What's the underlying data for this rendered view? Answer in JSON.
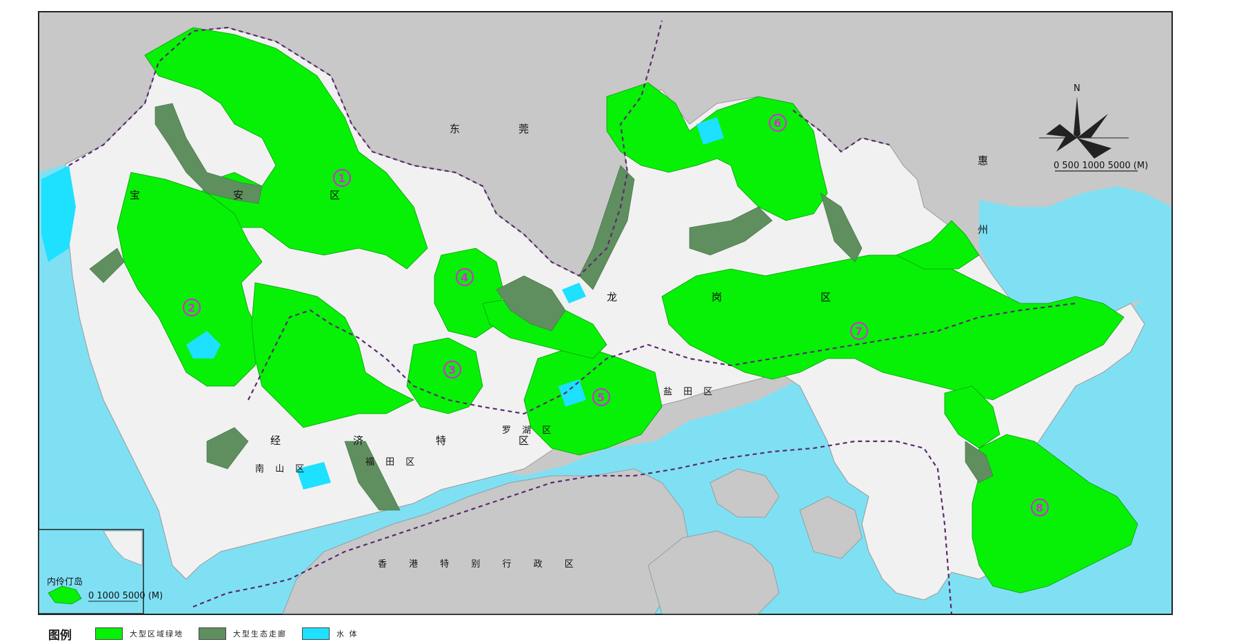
{
  "map": {
    "colors": {
      "sea": "#7fe0f4",
      "land_outside": "#c8c8c8",
      "urban": "#f1f1f1",
      "green_belt": "#06f106",
      "eco_corridor": "#5f8f5f",
      "water": "#1ee0ff",
      "boundary": "#5a2a6e",
      "marker": "#d42bd4"
    },
    "region_labels": {
      "dongguan_1": "东",
      "dongguan_2": "莞",
      "huizhou_1": "惠",
      "huizhou_2": "州",
      "hongkong": "香 港 特 别 行 政 区",
      "baoan_1": "宝",
      "baoan_2": "安",
      "baoan_3": "区",
      "longgang_1": "龙",
      "longgang_2": "岗",
      "longgang_3": "区",
      "tequ_1": "经",
      "tequ_2": "济",
      "tequ_3": "特",
      "tequ_4": "区",
      "nanshan": "南 山 区",
      "futian": "福 田 区",
      "luohu": "罗 湖 区",
      "yantian": "盐 田 区"
    },
    "markers": [
      "1",
      "2",
      "3",
      "4",
      "5",
      "6",
      "7",
      "8"
    ],
    "inset_label": "内伶仃岛",
    "north_label": "N",
    "scale_text": "0  500 1000        5000 (M)",
    "inset_scale_text": "0  1000      5000 (M)"
  },
  "legend": {
    "title": "图例",
    "items": [
      {
        "label": "大型区域绿地",
        "color": "#06f106"
      },
      {
        "label": "大型生态走廊",
        "color": "#5f8f5f"
      },
      {
        "label": "水 体",
        "color": "#1ee0ff"
      }
    ]
  }
}
